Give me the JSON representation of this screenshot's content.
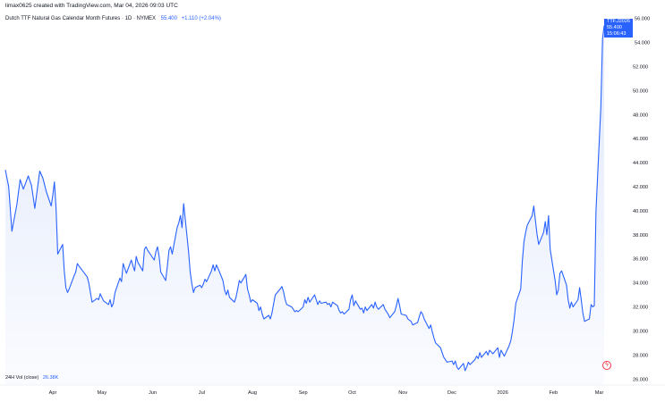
{
  "caption": "limax0625 created with TradingView.com, Mar 04, 2026 09:03 UTC",
  "symbol": {
    "title": "Dutch TTF Natural Gas Calendar Month Futures · 1D · NYMEX",
    "price": "55.400",
    "change": "+1.110 (+2.04%)"
  },
  "price_badge": {
    "ticker": "TTF.J2026",
    "price": "55.400",
    "countdown": "15:06:43"
  },
  "volume": {
    "label": "24H Vol (close)",
    "value": "26.38K"
  },
  "colors": {
    "line": "#2962ff",
    "area_top": "#dfe7fb",
    "badge": "#2962ff",
    "logo": "#f23645"
  },
  "icons": {
    "logo": "tradingview-lightning-icon"
  },
  "chart_data": {
    "type": "area",
    "title": "Dutch TTF Natural Gas Calendar Month Futures · 1D · NYMEX",
    "ylim": [
      25.5,
      56.2
    ],
    "y_ticks": [
      "26.000",
      "28.000",
      "30.000",
      "32.000",
      "34.000",
      "36.000",
      "38.000",
      "40.000",
      "42.000",
      "44.000",
      "46.000",
      "48.000",
      "50.000",
      "52.000",
      "54.000",
      "56.000"
    ],
    "y_tick_values": [
      26,
      28,
      30,
      32,
      34,
      36,
      38,
      40,
      42,
      44,
      46,
      48,
      50,
      52,
      54,
      56
    ],
    "x_tick_labels": [
      "Apr",
      "May",
      "Jun",
      "Jul",
      "Aug",
      "Sep",
      "Oct",
      "Nov",
      "Dec",
      "2026",
      "Feb",
      "Mar"
    ],
    "x_tick_dates": [
      "2025-04-01",
      "2025-05-01",
      "2025-06-01",
      "2025-07-01",
      "2025-08-01",
      "2025-09-01",
      "2025-10-01",
      "2025-11-01",
      "2025-12-01",
      "2026-01-01",
      "2026-02-01",
      "2026-03-01"
    ],
    "grid": false,
    "series": [
      {
        "values": [
          [
            "2025-03-03",
            43.4
          ],
          [
            "2025-03-05",
            42.0
          ],
          [
            "2025-03-07",
            38.3
          ],
          [
            "2025-03-10",
            40.5
          ],
          [
            "2025-03-12",
            42.6
          ],
          [
            "2025-03-14",
            41.8
          ],
          [
            "2025-03-17",
            42.9
          ],
          [
            "2025-03-19",
            42.1
          ],
          [
            "2025-03-21",
            40.2
          ],
          [
            "2025-03-24",
            43.3
          ],
          [
            "2025-03-26",
            42.7
          ],
          [
            "2025-03-28",
            41.6
          ],
          [
            "2025-03-31",
            40.4
          ],
          [
            "2025-04-01",
            41.3
          ],
          [
            "2025-04-02",
            42.4
          ],
          [
            "2025-04-03",
            40.1
          ],
          [
            "2025-04-04",
            36.4
          ],
          [
            "2025-04-07",
            37.2
          ],
          [
            "2025-04-08",
            35.0
          ],
          [
            "2025-04-09",
            33.6
          ],
          [
            "2025-04-10",
            33.2
          ],
          [
            "2025-04-11",
            33.5
          ],
          [
            "2025-04-14",
            34.6
          ],
          [
            "2025-04-15",
            34.9
          ],
          [
            "2025-04-16",
            35.6
          ],
          [
            "2025-04-17",
            35.4
          ],
          [
            "2025-04-22",
            34.5
          ],
          [
            "2025-04-23",
            34.0
          ],
          [
            "2025-04-24",
            33.2
          ],
          [
            "2025-04-25",
            32.4
          ],
          [
            "2025-04-28",
            32.7
          ],
          [
            "2025-04-29",
            32.6
          ],
          [
            "2025-04-30",
            33.1
          ],
          [
            "2025-05-02",
            32.5
          ],
          [
            "2025-05-05",
            32.2
          ],
          [
            "2025-05-06",
            32.6
          ],
          [
            "2025-05-07",
            32.0
          ],
          [
            "2025-05-08",
            32.3
          ],
          [
            "2025-05-09",
            33.2
          ],
          [
            "2025-05-12",
            34.4
          ],
          [
            "2025-05-13",
            34.1
          ],
          [
            "2025-05-14",
            35.6
          ],
          [
            "2025-05-15",
            35.2
          ],
          [
            "2025-05-16",
            34.8
          ],
          [
            "2025-05-19",
            35.9
          ],
          [
            "2025-05-20",
            35.4
          ],
          [
            "2025-05-21",
            35.0
          ],
          [
            "2025-05-22",
            36.2
          ],
          [
            "2025-05-23",
            35.7
          ],
          [
            "2025-05-26",
            35.0
          ],
          [
            "2025-05-27",
            36.8
          ],
          [
            "2025-05-28",
            37.0
          ],
          [
            "2025-05-29",
            36.7
          ],
          [
            "2025-05-30",
            36.5
          ],
          [
            "2025-06-02",
            35.9
          ],
          [
            "2025-06-03",
            36.6
          ],
          [
            "2025-06-04",
            37.0
          ],
          [
            "2025-06-05",
            36.2
          ],
          [
            "2025-06-06",
            34.9
          ],
          [
            "2025-06-09",
            34.2
          ],
          [
            "2025-06-10",
            35.4
          ],
          [
            "2025-06-11",
            36.7
          ],
          [
            "2025-06-12",
            37.0
          ],
          [
            "2025-06-13",
            36.4
          ],
          [
            "2025-06-16",
            38.6
          ],
          [
            "2025-06-17",
            39.0
          ],
          [
            "2025-06-18",
            39.6
          ],
          [
            "2025-06-19",
            38.6
          ],
          [
            "2025-06-20",
            40.6
          ],
          [
            "2025-06-23",
            36.6
          ],
          [
            "2025-06-24",
            34.9
          ],
          [
            "2025-06-25",
            33.9
          ],
          [
            "2025-06-26",
            33.2
          ],
          [
            "2025-06-27",
            33.6
          ],
          [
            "2025-06-30",
            33.8
          ],
          [
            "2025-07-01",
            33.6
          ],
          [
            "2025-07-02",
            33.9
          ],
          [
            "2025-07-03",
            34.3
          ],
          [
            "2025-07-04",
            34.1
          ],
          [
            "2025-07-07",
            35.0
          ],
          [
            "2025-07-08",
            35.5
          ],
          [
            "2025-07-09",
            35.0
          ],
          [
            "2025-07-10",
            35.5
          ],
          [
            "2025-07-11",
            35.2
          ],
          [
            "2025-07-14",
            34.2
          ],
          [
            "2025-07-15",
            33.4
          ],
          [
            "2025-07-16",
            33.0
          ],
          [
            "2025-07-17",
            33.4
          ],
          [
            "2025-07-18",
            32.8
          ],
          [
            "2025-07-21",
            32.4
          ],
          [
            "2025-07-22",
            32.8
          ],
          [
            "2025-07-23",
            33.5
          ],
          [
            "2025-07-24",
            34.2
          ],
          [
            "2025-07-25",
            34.0
          ],
          [
            "2025-07-28",
            34.7
          ],
          [
            "2025-07-29",
            33.5
          ],
          [
            "2025-07-30",
            33.0
          ],
          [
            "2025-07-31",
            32.4
          ],
          [
            "2025-08-01",
            32.6
          ],
          [
            "2025-08-04",
            32.3
          ],
          [
            "2025-08-05",
            31.7
          ],
          [
            "2025-08-06",
            32.0
          ],
          [
            "2025-08-07",
            31.4
          ],
          [
            "2025-08-08",
            31.0
          ],
          [
            "2025-08-11",
            31.3
          ],
          [
            "2025-08-12",
            31.0
          ],
          [
            "2025-08-13",
            31.5
          ],
          [
            "2025-08-14",
            32.3
          ],
          [
            "2025-08-15",
            33.0
          ],
          [
            "2025-08-18",
            33.5
          ],
          [
            "2025-08-19",
            33.7
          ],
          [
            "2025-08-20",
            33.3
          ],
          [
            "2025-08-21",
            32.6
          ],
          [
            "2025-08-22",
            32.2
          ],
          [
            "2025-08-25",
            32.0
          ],
          [
            "2025-08-26",
            31.8
          ],
          [
            "2025-08-27",
            31.6
          ],
          [
            "2025-08-28",
            31.7
          ],
          [
            "2025-08-29",
            31.6
          ],
          [
            "2025-09-01",
            32.0
          ],
          [
            "2025-09-02",
            32.6
          ],
          [
            "2025-09-03",
            32.3
          ],
          [
            "2025-09-04",
            32.8
          ],
          [
            "2025-09-05",
            32.4
          ],
          [
            "2025-09-08",
            33.0
          ],
          [
            "2025-09-09",
            32.6
          ],
          [
            "2025-09-10",
            32.2
          ],
          [
            "2025-09-11",
            32.5
          ],
          [
            "2025-09-12",
            32.3
          ],
          [
            "2025-09-15",
            32.4
          ],
          [
            "2025-09-16",
            32.2
          ],
          [
            "2025-09-17",
            32.3
          ],
          [
            "2025-09-18",
            32.0
          ],
          [
            "2025-09-19",
            32.4
          ],
          [
            "2025-09-22",
            32.1
          ],
          [
            "2025-09-23",
            31.7
          ],
          [
            "2025-09-24",
            31.5
          ],
          [
            "2025-09-25",
            31.6
          ],
          [
            "2025-09-26",
            31.4
          ],
          [
            "2025-09-29",
            31.8
          ],
          [
            "2025-09-30",
            32.6
          ],
          [
            "2025-10-01",
            33.0
          ],
          [
            "2025-10-02",
            32.1
          ],
          [
            "2025-10-03",
            32.5
          ],
          [
            "2025-10-06",
            31.8
          ],
          [
            "2025-10-07",
            31.9
          ],
          [
            "2025-10-08",
            31.5
          ],
          [
            "2025-10-09",
            32.0
          ],
          [
            "2025-10-10",
            31.7
          ],
          [
            "2025-10-13",
            32.2
          ],
          [
            "2025-10-14",
            31.9
          ],
          [
            "2025-10-15",
            32.4
          ],
          [
            "2025-10-16",
            32.0
          ],
          [
            "2025-10-17",
            31.8
          ],
          [
            "2025-10-20",
            32.2
          ],
          [
            "2025-10-21",
            31.8
          ],
          [
            "2025-10-22",
            31.6
          ],
          [
            "2025-10-23",
            31.4
          ],
          [
            "2025-10-24",
            31.1
          ],
          [
            "2025-10-27",
            31.6
          ],
          [
            "2025-10-28",
            32.1
          ],
          [
            "2025-10-29",
            32.7
          ],
          [
            "2025-10-30",
            32.1
          ],
          [
            "2025-10-31",
            31.4
          ],
          [
            "2025-11-03",
            31.3
          ],
          [
            "2025-11-04",
            31.0
          ],
          [
            "2025-11-05",
            30.9
          ],
          [
            "2025-11-06",
            30.8
          ],
          [
            "2025-11-07",
            30.5
          ],
          [
            "2025-11-10",
            30.7
          ],
          [
            "2025-11-11",
            31.2
          ],
          [
            "2025-11-12",
            31.6
          ],
          [
            "2025-11-13",
            31.4
          ],
          [
            "2025-11-14",
            31.0
          ],
          [
            "2025-11-17",
            30.2
          ],
          [
            "2025-11-18",
            30.5
          ],
          [
            "2025-11-19",
            29.9
          ],
          [
            "2025-11-20",
            29.4
          ],
          [
            "2025-11-21",
            29.0
          ],
          [
            "2025-11-24",
            28.6
          ],
          [
            "2025-11-25",
            28.2
          ],
          [
            "2025-11-26",
            27.8
          ],
          [
            "2025-11-27",
            27.6
          ],
          [
            "2025-11-28",
            27.4
          ],
          [
            "2025-12-01",
            27.5
          ],
          [
            "2025-12-02",
            27.2
          ],
          [
            "2025-12-03",
            27.5
          ],
          [
            "2025-12-04",
            27.0
          ],
          [
            "2025-12-05",
            26.8
          ],
          [
            "2025-12-08",
            27.3
          ],
          [
            "2025-12-09",
            26.7
          ],
          [
            "2025-12-10",
            27.0
          ],
          [
            "2025-12-11",
            27.4
          ],
          [
            "2025-12-12",
            27.2
          ],
          [
            "2025-12-15",
            27.6
          ],
          [
            "2025-12-16",
            27.9
          ],
          [
            "2025-12-17",
            27.7
          ],
          [
            "2025-12-18",
            28.2
          ],
          [
            "2025-12-19",
            27.8
          ],
          [
            "2025-12-22",
            28.3
          ],
          [
            "2025-12-23",
            28.0
          ],
          [
            "2025-12-24",
            28.4
          ],
          [
            "2025-12-26",
            28.1
          ],
          [
            "2025-12-29",
            28.6
          ],
          [
            "2025-12-30",
            27.8
          ],
          [
            "2025-12-31",
            28.4
          ],
          [
            "2026-01-02",
            27.9
          ],
          [
            "2026-01-05",
            28.8
          ],
          [
            "2026-01-06",
            29.2
          ],
          [
            "2026-01-07",
            30.0
          ],
          [
            "2026-01-08",
            31.0
          ],
          [
            "2026-01-09",
            32.3
          ],
          [
            "2026-01-12",
            33.5
          ],
          [
            "2026-01-13",
            35.8
          ],
          [
            "2026-01-14",
            37.4
          ],
          [
            "2026-01-15",
            38.2
          ],
          [
            "2026-01-16",
            38.8
          ],
          [
            "2026-01-19",
            39.6
          ],
          [
            "2026-01-20",
            40.4
          ],
          [
            "2026-01-21",
            39.2
          ],
          [
            "2026-01-22",
            38.0
          ],
          [
            "2026-01-23",
            37.2
          ],
          [
            "2026-01-26",
            38.2
          ],
          [
            "2026-01-27",
            39.1
          ],
          [
            "2026-01-28",
            38.0
          ],
          [
            "2026-01-29",
            39.6
          ],
          [
            "2026-01-30",
            36.8
          ],
          [
            "2026-02-02",
            34.2
          ],
          [
            "2026-02-03",
            33.0
          ],
          [
            "2026-02-04",
            33.4
          ],
          [
            "2026-02-05",
            34.8
          ],
          [
            "2026-02-06",
            35.0
          ],
          [
            "2026-02-09",
            33.8
          ],
          [
            "2026-02-10",
            32.6
          ],
          [
            "2026-02-11",
            31.9
          ],
          [
            "2026-02-12",
            32.4
          ],
          [
            "2026-02-13",
            32.0
          ],
          [
            "2026-02-16",
            32.6
          ],
          [
            "2026-02-17",
            33.6
          ],
          [
            "2026-02-18",
            32.6
          ],
          [
            "2026-02-19",
            31.5
          ],
          [
            "2026-02-20",
            30.8
          ],
          [
            "2026-02-23",
            31.0
          ],
          [
            "2026-02-24",
            32.2
          ],
          [
            "2026-02-25",
            32.0
          ],
          [
            "2026-02-26",
            32.1
          ],
          [
            "2026-02-27",
            40.0
          ],
          [
            "2026-03-02",
            48.6
          ],
          [
            "2026-03-03",
            54.3
          ],
          [
            "2026-03-04",
            55.4
          ]
        ]
      }
    ]
  }
}
